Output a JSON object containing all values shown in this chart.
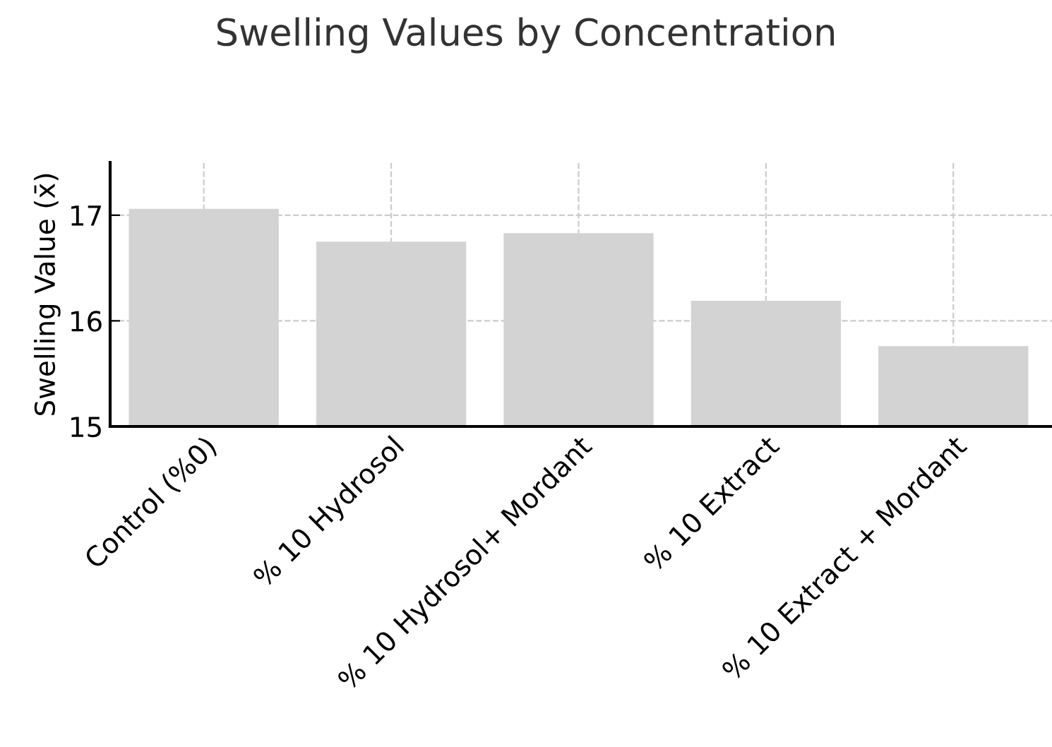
{
  "chart_data": {
    "type": "bar",
    "title": "Swelling Values by Concentration",
    "ylabel": "Swelling Value (x̄)",
    "categories": [
      "Control (%0)",
      "% 10 Hydrosol",
      "% 10 Hydrosol+ Mordant",
      "% 10 Extract",
      "% 10 Extract + Mordant"
    ],
    "values": [
      17.06,
      16.75,
      16.83,
      16.19,
      15.76
    ],
    "color": "#d3d3d3",
    "ylim": [
      15,
      17.5
    ],
    "yticks": [
      15,
      16,
      17
    ],
    "grid": true
  }
}
